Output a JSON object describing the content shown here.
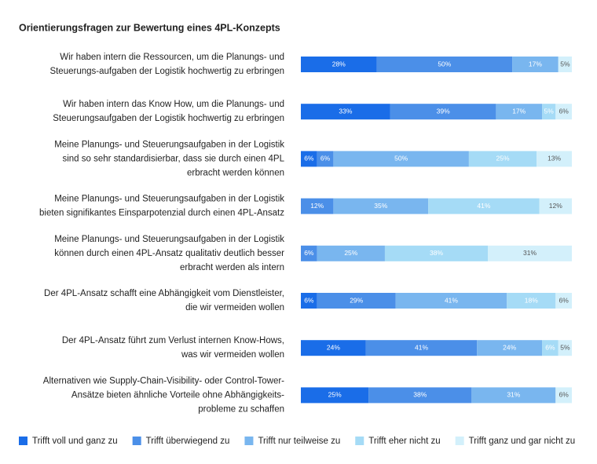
{
  "chart_data": {
    "type": "stacked-bar-horizontal",
    "title": "Orientierungsfragen zur Bewertung eines 4PL-Konzepts",
    "categories": [
      "Wir haben intern die Ressourcen, um die Planungs- und\nSteuerungs-aufgaben der Logistik hochwertig zu erbringen",
      "Wir haben intern das Know How, um die Planungs- und\nSteuerungsaufgaben der Logistik hochwertig zu erbringen",
      "Meine Planungs- und Steuerungsaufgaben in der Logistik\nsind so sehr standardisierbar, dass sie durch einen 4PL\nerbracht werden können",
      "Meine Planungs- und Steuerungsaufgaben in der Logistik\nbieten signifikantes Einsparpotenzial durch einen 4PL-Ansatz",
      "Meine Planungs- und Steuerungsaufgaben in der Logistik\nkönnen durch einen 4PL-Ansatz qualitativ deutlich besser\nerbracht werden als intern",
      "Der 4PL-Ansatz schafft eine Abhängigkeit vom Dienstleister,\ndie wir vermeiden wollen",
      "Der 4PL-Ansatz führt zum Verlust internen Know-Hows,\nwas wir vermeiden wollen",
      "Alternativen wie Supply-Chain-Visibility- oder Control-Tower-\nAnsätze bieten ähnliche Vorteile ohne Abhängigkeits-\nprobleme zu schaffen"
    ],
    "series": [
      {
        "name": "Trifft voll und ganz zu",
        "color": "#1a6de8",
        "values": [
          28,
          33,
          6,
          null,
          null,
          6,
          24,
          25
        ],
        "value_labels": [
          "28%",
          "33%",
          "6%",
          null,
          null,
          "6%",
          "24%",
          "25%"
        ]
      },
      {
        "name": "Trifft überwiegend zu",
        "color": "#4b8fe8",
        "values": [
          50,
          39,
          6,
          12,
          6,
          29,
          41,
          38
        ],
        "value_labels": [
          "50%",
          "39%",
          "6%",
          "12%",
          "6%",
          "29%",
          "41%",
          "38%"
        ]
      },
      {
        "name": "Trifft nur teilweise zu",
        "color": "#79b6ef",
        "values": [
          17,
          17,
          50,
          35,
          25,
          41,
          24,
          31
        ],
        "value_labels": [
          "17%",
          "17%",
          "50%",
          "35%",
          "25%",
          "41%",
          "24%",
          "31%"
        ]
      },
      {
        "name": "Trifft eher nicht zu",
        "color": "#a5dbf6",
        "values": [
          null,
          5,
          25,
          41,
          38,
          18,
          6,
          null
        ],
        "value_labels": [
          null,
          "5%",
          "25%",
          "41%",
          "38%",
          "18%",
          "6%",
          null
        ]
      },
      {
        "name": "Trifft ganz und gar nicht zu",
        "color": "#d3f0fb",
        "values": [
          5,
          6,
          13,
          12,
          31,
          6,
          5,
          6
        ],
        "value_labels": [
          "5%",
          "6%",
          "13%",
          "12%",
          "31%",
          "6%",
          "5%",
          "6%"
        ]
      }
    ],
    "xlim": [
      0,
      100
    ]
  }
}
